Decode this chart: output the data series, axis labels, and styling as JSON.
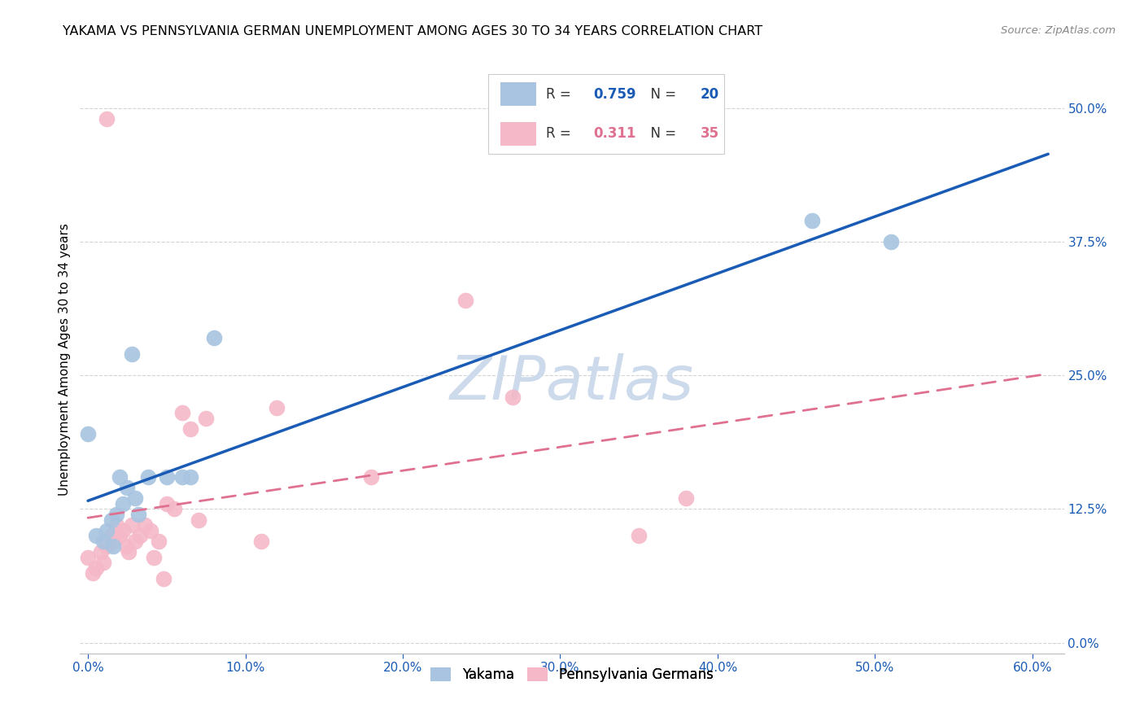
{
  "title": "YAKAMA VS PENNSYLVANIA GERMAN UNEMPLOYMENT AMONG AGES 30 TO 34 YEARS CORRELATION CHART",
  "source": "Source: ZipAtlas.com",
  "xlabel_tick_vals": [
    0.0,
    0.1,
    0.2,
    0.3,
    0.4,
    0.5,
    0.6
  ],
  "ylabel_tick_vals": [
    0.0,
    0.125,
    0.25,
    0.375,
    0.5
  ],
  "ylabel_tick_labels": [
    "0.0%",
    "12.5%",
    "25.0%",
    "37.5%",
    "50.0%"
  ],
  "xlim": [
    -0.005,
    0.62
  ],
  "ylim": [
    -0.01,
    0.54
  ],
  "ylabel": "Unemployment Among Ages 30 to 34 years",
  "legend_label1": "Yakama",
  "legend_label2": "Pennsylvania Germans",
  "R1": "0.759",
  "N1": "20",
  "R2": "0.311",
  "N2": "35",
  "yakama_x": [
    0.0,
    0.005,
    0.01,
    0.012,
    0.015,
    0.016,
    0.018,
    0.02,
    0.022,
    0.025,
    0.028,
    0.03,
    0.032,
    0.038,
    0.05,
    0.06,
    0.065,
    0.08,
    0.46,
    0.51
  ],
  "yakama_y": [
    0.195,
    0.1,
    0.095,
    0.105,
    0.115,
    0.09,
    0.12,
    0.155,
    0.13,
    0.145,
    0.27,
    0.135,
    0.12,
    0.155,
    0.155,
    0.155,
    0.155,
    0.285,
    0.395,
    0.375
  ],
  "pagerman_x": [
    0.0,
    0.003,
    0.005,
    0.008,
    0.01,
    0.012,
    0.015,
    0.017,
    0.018,
    0.02,
    0.022,
    0.024,
    0.026,
    0.028,
    0.03,
    0.033,
    0.036,
    0.04,
    0.042,
    0.045,
    0.048,
    0.05,
    0.055,
    0.06,
    0.065,
    0.07,
    0.075,
    0.11,
    0.12,
    0.18,
    0.24,
    0.27,
    0.35,
    0.38,
    0.012
  ],
  "pagerman_y": [
    0.08,
    0.065,
    0.07,
    0.085,
    0.075,
    0.09,
    0.1,
    0.095,
    0.11,
    0.1,
    0.105,
    0.09,
    0.085,
    0.11,
    0.095,
    0.1,
    0.11,
    0.105,
    0.08,
    0.095,
    0.06,
    0.13,
    0.125,
    0.215,
    0.2,
    0.115,
    0.21,
    0.095,
    0.22,
    0.155,
    0.32,
    0.23,
    0.1,
    0.135,
    0.49
  ],
  "yakama_color": "#a8c4e0",
  "pagerman_color": "#f4b8c8",
  "yakama_line_color": "#1a5cb5",
  "pagerman_line_color": "#e07090",
  "background_color": "#ffffff",
  "grid_color": "#d0d0d0",
  "watermark_color": "#ccdaeb",
  "title_fontsize": 11.5,
  "axis_label_fontsize": 11,
  "tick_fontsize": 11,
  "right_tick_color": "#1a5cb5",
  "bottom_tick_color": "#1a5cb5"
}
